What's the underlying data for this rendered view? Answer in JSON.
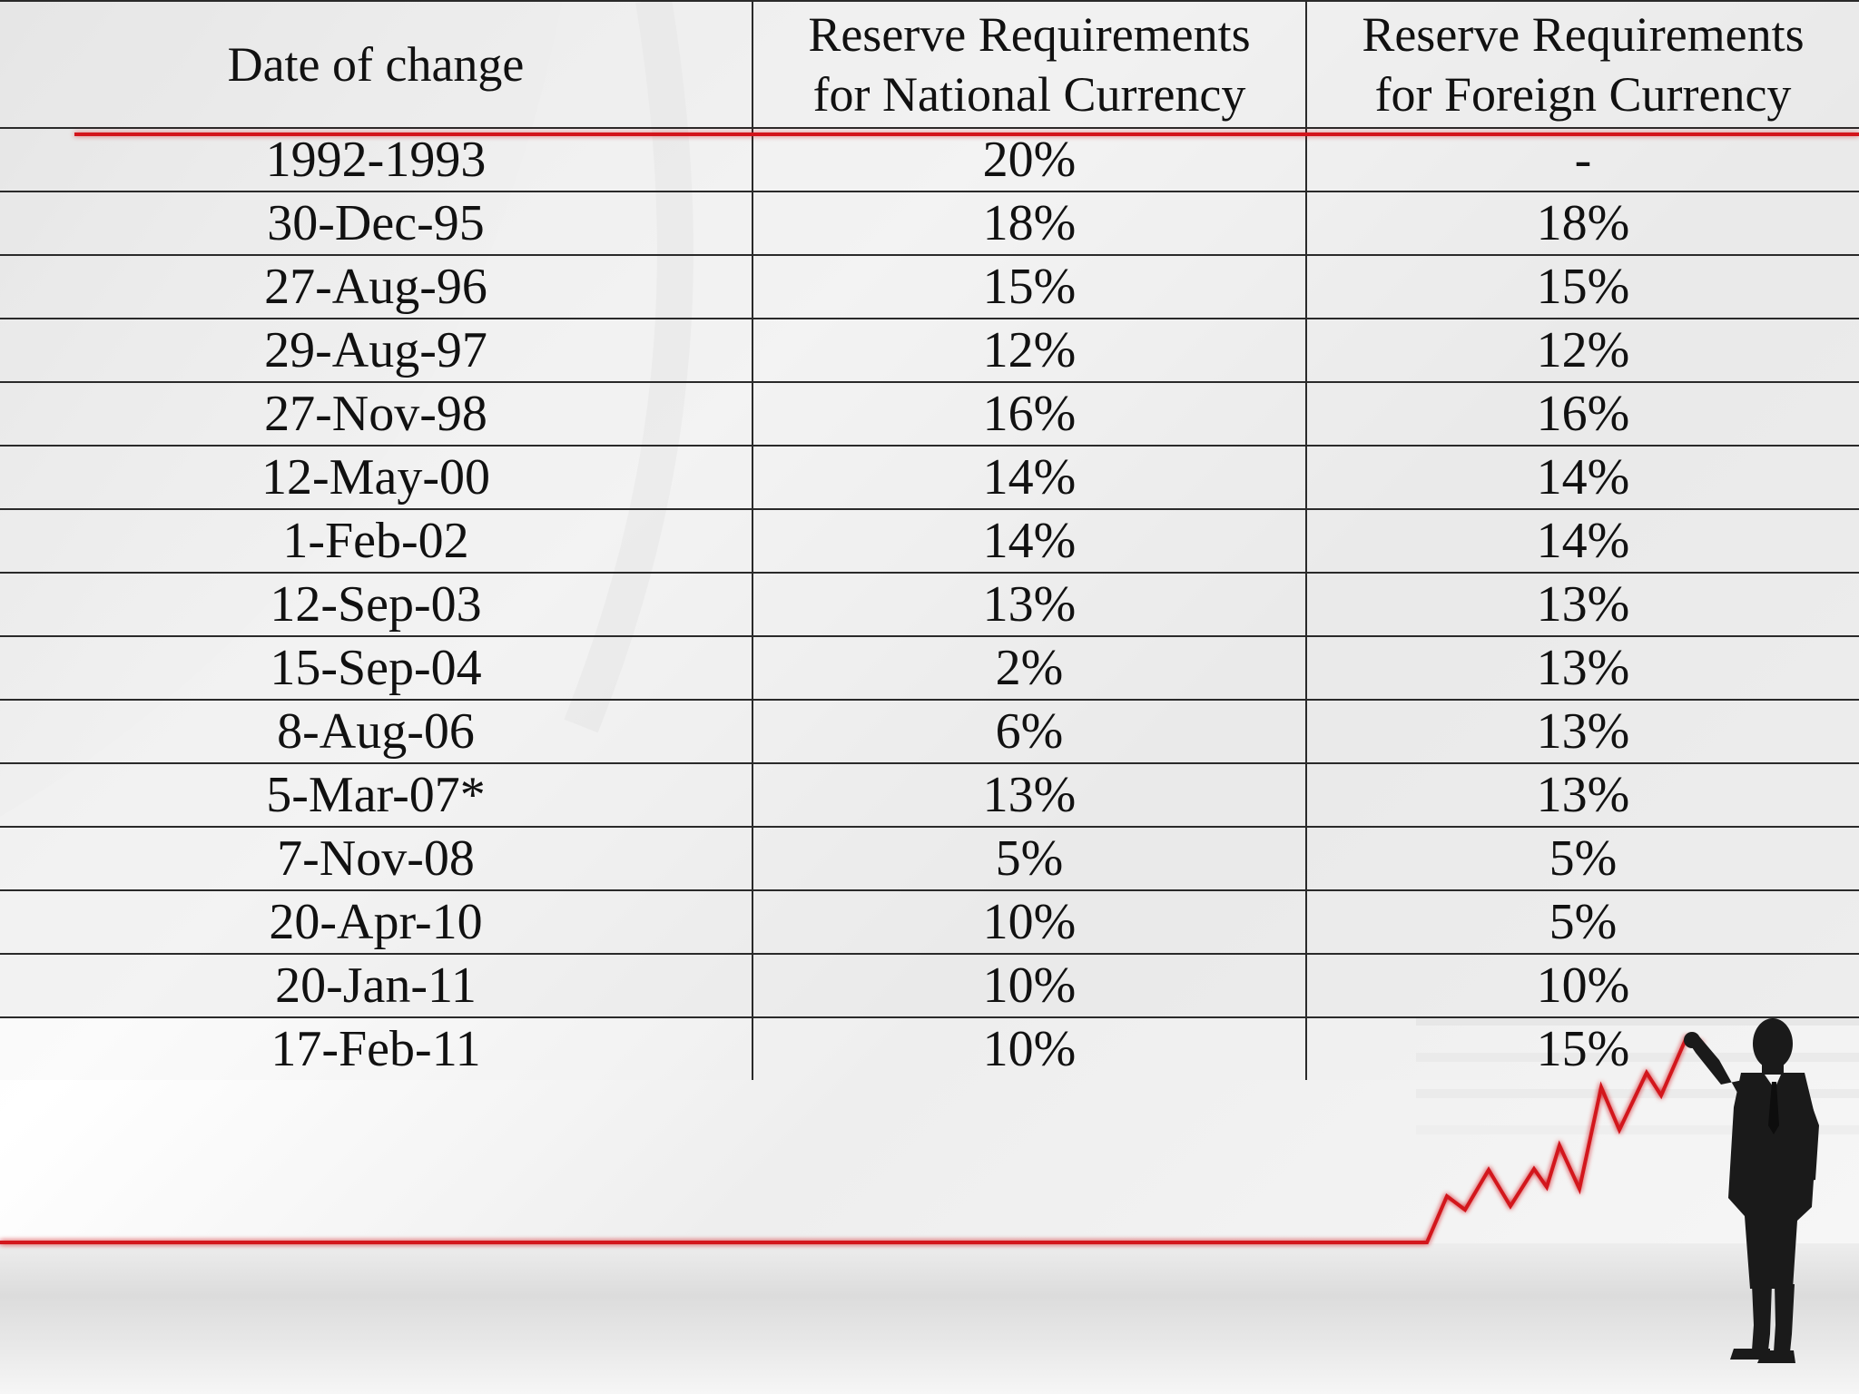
{
  "table": {
    "headers": {
      "date": "Date of change",
      "national_line1": "Reserve Requirements",
      "national_line2": "for National Currency",
      "foreign_line1": "Reserve Requirements",
      "foreign_line2": "for Foreign Currency"
    },
    "rows": [
      {
        "date": "1992-1993",
        "national": "20%",
        "foreign": "-"
      },
      {
        "date": "30-Dec-95",
        "national": "18%",
        "foreign": "18%"
      },
      {
        "date": "27-Aug-96",
        "national": "15%",
        "foreign": "15%"
      },
      {
        "date": "29-Aug-97",
        "national": "12%",
        "foreign": "12%"
      },
      {
        "date": "27-Nov-98",
        "national": "16%",
        "foreign": "16%"
      },
      {
        "date": "12-May-00",
        "national": "14%",
        "foreign": "14%"
      },
      {
        "date": "1-Feb-02",
        "national": "14%",
        "foreign": "14%"
      },
      {
        "date": "12-Sep-03",
        "national": "13%",
        "foreign": "13%"
      },
      {
        "date": "15-Sep-04",
        "national": "2%",
        "foreign": "13%"
      },
      {
        "date": "8-Aug-06",
        "national": "6%",
        "foreign": "13%"
      },
      {
        "date": "5-Mar-07*",
        "national": "13%",
        "foreign": "13%"
      },
      {
        "date": "7-Nov-08",
        "national": "5%",
        "foreign": "5%"
      },
      {
        "date": "20-Apr-10",
        "national": "10%",
        "foreign": "5%"
      },
      {
        "date": "20-Jan-11",
        "national": "10%",
        "foreign": "10%"
      },
      {
        "date": "17-Feb-11",
        "national": "10%",
        "foreign": "15%"
      }
    ]
  },
  "decoration": {
    "accent_color": "#d3141b",
    "silhouette_color": "#1a1a1a",
    "icons": [
      "rising-chart-line-icon",
      "businessman-silhouette-icon"
    ]
  }
}
